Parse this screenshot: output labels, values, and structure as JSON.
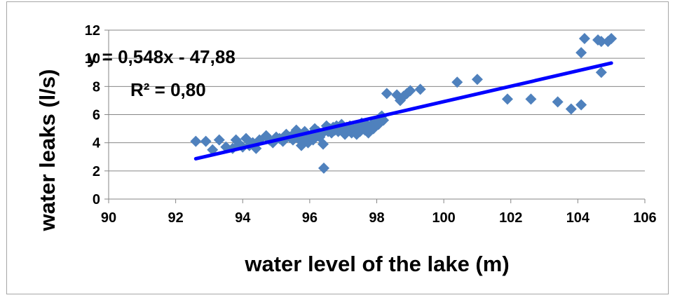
{
  "chart_data": {
    "type": "scatter",
    "xlabel": "water level of the lake  (m)",
    "ylabel": "water leaks  (l/s)",
    "xlim": [
      90,
      106
    ],
    "ylim": [
      0,
      12
    ],
    "x_ticks": [
      "90",
      "92",
      "94",
      "96",
      "98",
      "100",
      "102",
      "104",
      "106"
    ],
    "y_ticks": [
      "0",
      "2",
      "4",
      "6",
      "8",
      "10",
      "12"
    ],
    "grid": "horizontal",
    "legend": "none",
    "marker_color": "#4f81bd",
    "trendline_color": "#0000ff",
    "trendline": {
      "slope": 0.548,
      "intercept": -47.88,
      "x_range": [
        92.6,
        105.0
      ]
    },
    "equation": "y = 0,548x - 47,88",
    "r_squared": "R² = 0,80",
    "points": [
      [
        92.6,
        4.1
      ],
      [
        92.9,
        4.1
      ],
      [
        93.3,
        4.2
      ],
      [
        93.1,
        3.5
      ],
      [
        93.5,
        3.7
      ],
      [
        93.8,
        4.2
      ],
      [
        93.9,
        3.9
      ],
      [
        93.7,
        3.6
      ],
      [
        94.0,
        3.7
      ],
      [
        94.1,
        4.3
      ],
      [
        94.2,
        3.8
      ],
      [
        94.3,
        4.0
      ],
      [
        94.4,
        3.6
      ],
      [
        94.5,
        4.2
      ],
      [
        94.7,
        4.5
      ],
      [
        94.8,
        4.2
      ],
      [
        94.9,
        4.0
      ],
      [
        95.0,
        4.4
      ],
      [
        95.1,
        4.3
      ],
      [
        95.2,
        4.1
      ],
      [
        95.3,
        4.6
      ],
      [
        95.4,
        4.4
      ],
      [
        95.5,
        4.2
      ],
      [
        95.55,
        4.7
      ],
      [
        95.6,
        4.9
      ],
      [
        95.65,
        4.5
      ],
      [
        95.7,
        4.2
      ],
      [
        95.75,
        3.8
      ],
      [
        95.8,
        4.3
      ],
      [
        95.85,
        4.8
      ],
      [
        95.9,
        4.5
      ],
      [
        95.95,
        4.0
      ],
      [
        96.0,
        4.4
      ],
      [
        96.05,
        4.6
      ],
      [
        96.1,
        4.2
      ],
      [
        96.15,
        5.0
      ],
      [
        96.2,
        4.6
      ],
      [
        96.25,
        4.8
      ],
      [
        96.3,
        4.4
      ],
      [
        96.35,
        4.6
      ],
      [
        96.4,
        3.9
      ],
      [
        96.42,
        2.2
      ],
      [
        96.5,
        5.2
      ],
      [
        96.55,
        4.8
      ],
      [
        96.6,
        5.0
      ],
      [
        96.65,
        4.7
      ],
      [
        96.7,
        5.1
      ],
      [
        96.75,
        4.9
      ],
      [
        96.8,
        5.2
      ],
      [
        96.85,
        4.8
      ],
      [
        96.9,
        5.0
      ],
      [
        96.95,
        5.3
      ],
      [
        97.0,
        5.0
      ],
      [
        97.05,
        4.6
      ],
      [
        97.1,
        5.1
      ],
      [
        97.15,
        4.9
      ],
      [
        97.2,
        5.2
      ],
      [
        97.25,
        4.7
      ],
      [
        97.3,
        5.0
      ],
      [
        97.35,
        4.9
      ],
      [
        97.4,
        4.6
      ],
      [
        97.45,
        5.2
      ],
      [
        97.5,
        4.8
      ],
      [
        97.55,
        5.4
      ],
      [
        97.6,
        5.0
      ],
      [
        97.65,
        4.9
      ],
      [
        97.7,
        5.3
      ],
      [
        97.75,
        4.7
      ],
      [
        97.8,
        5.1
      ],
      [
        97.85,
        5.3
      ],
      [
        97.9,
        5.0
      ],
      [
        97.95,
        5.2
      ],
      [
        98.0,
        5.5
      ],
      [
        98.05,
        5.3
      ],
      [
        98.1,
        5.8
      ],
      [
        98.15,
        5.9
      ],
      [
        98.2,
        5.6
      ],
      [
        98.3,
        7.5
      ],
      [
        98.6,
        7.4
      ],
      [
        98.7,
        7.0
      ],
      [
        98.8,
        7.3
      ],
      [
        98.9,
        7.5
      ],
      [
        99.0,
        7.7
      ],
      [
        99.3,
        7.8
      ],
      [
        100.4,
        8.3
      ],
      [
        101.0,
        8.5
      ],
      [
        101.9,
        7.1
      ],
      [
        102.6,
        7.1
      ],
      [
        103.4,
        6.9
      ],
      [
        103.8,
        6.4
      ],
      [
        104.1,
        6.7
      ],
      [
        104.1,
        10.4
      ],
      [
        104.2,
        11.4
      ],
      [
        104.6,
        11.3
      ],
      [
        104.7,
        11.2
      ],
      [
        104.7,
        9.0
      ],
      [
        105.0,
        11.4
      ],
      [
        104.9,
        11.2
      ]
    ]
  }
}
